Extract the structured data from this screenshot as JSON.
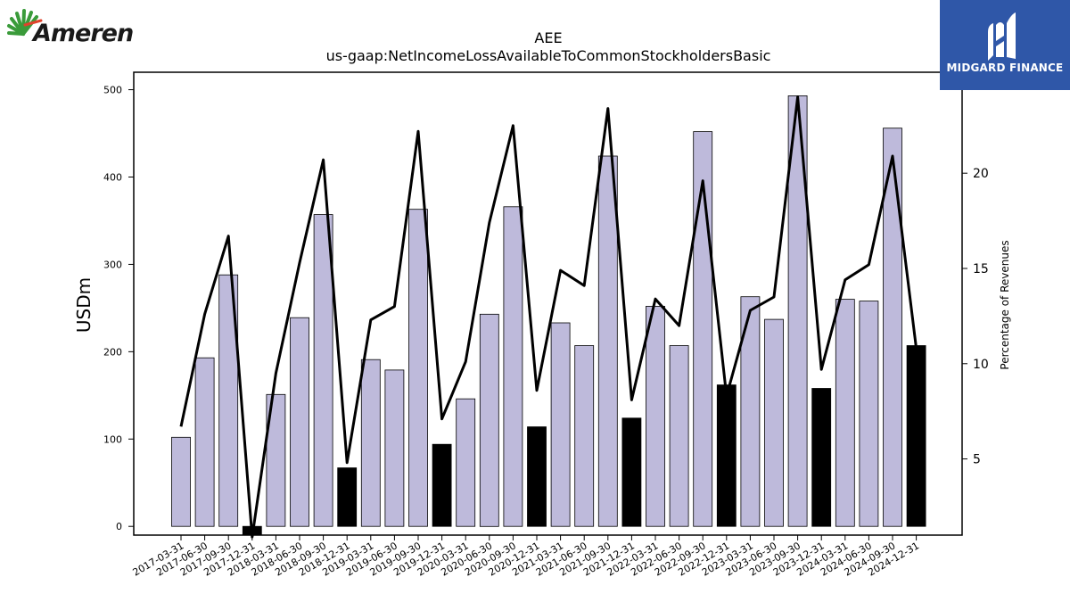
{
  "logos": {
    "left_brand": "Ameren",
    "right_brand": "MIDGARD FINANCE",
    "brand_colors": {
      "ameren_green": "#3a9b3a",
      "ameren_red": "#e0422c",
      "midgard_blue": "#2f57a8"
    }
  },
  "chart_data": {
    "type": "bar",
    "title": "AEE",
    "subtitle": "us-gaap:NetIncomeLossAvailableToCommonStockholdersBasic",
    "ylabel": "USDm",
    "y2label": "Percentage of Revenues",
    "ylim": [
      -10,
      520
    ],
    "y2lim": [
      1.0,
      25.3
    ],
    "yticks": [
      0,
      100,
      200,
      300,
      400,
      500
    ],
    "y2ticks": [
      5,
      10,
      15,
      20
    ],
    "grid": false,
    "categories": [
      "2017-03-31",
      "2017-06-30",
      "2017-09-30",
      "2017-12-31",
      "2018-03-31",
      "2018-06-30",
      "2018-09-30",
      "2018-12-31",
      "2019-03-31",
      "2019-06-30",
      "2019-09-30",
      "2019-12-31",
      "2020-03-31",
      "2020-06-30",
      "2020-09-30",
      "2020-12-31",
      "2021-03-31",
      "2021-06-30",
      "2021-09-30",
      "2021-12-31",
      "2022-03-31",
      "2022-06-30",
      "2022-09-30",
      "2022-12-31",
      "2023-03-31",
      "2023-06-30",
      "2023-09-30",
      "2023-12-31",
      "2024-03-31",
      "2024-06-30",
      "2024-09-30",
      "2024-12-31"
    ],
    "series": [
      {
        "type": "bar",
        "values": [
          102,
          193,
          288,
          -10,
          151,
          239,
          357,
          67,
          191,
          179,
          363,
          94,
          146,
          243,
          366,
          114,
          233,
          207,
          424,
          124,
          252,
          207,
          452,
          162,
          263,
          237,
          493,
          158,
          260,
          258,
          456,
          207
        ],
        "colors": {
          "normal": "#bebadb",
          "q4": "#000000"
        }
      },
      {
        "type": "line",
        "axis": "right",
        "values": [
          6.7,
          12.6,
          16.7,
          0.9,
          9.5,
          15.3,
          20.7,
          4.8,
          12.3,
          13.0,
          22.2,
          7.1,
          10.1,
          17.4,
          22.5,
          8.6,
          14.9,
          14.1,
          23.4,
          8.1,
          13.4,
          12.0,
          19.6,
          8.3,
          12.8,
          13.5,
          24.0,
          9.7,
          14.4,
          15.2,
          20.9,
          10.8
        ],
        "color": "#000000"
      }
    ]
  }
}
